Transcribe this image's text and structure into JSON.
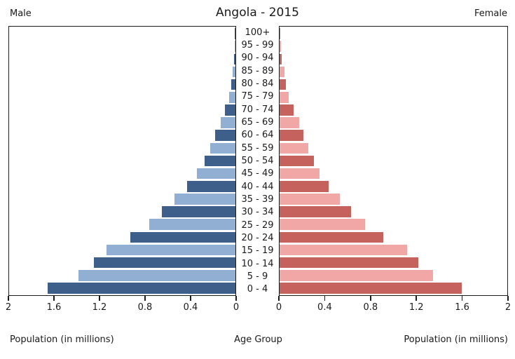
{
  "header": {
    "title": "Angola - 2015",
    "left_label": "Male",
    "right_label": "Female"
  },
  "axis": {
    "male_ticks": [
      "2",
      "1.6",
      "1.2",
      "0.8",
      "0.4",
      "0"
    ],
    "female_ticks": [
      "0",
      "0.4",
      "0.8",
      "1.2",
      "1.6",
      "2"
    ],
    "male_axis_label": "Population (in millions)",
    "female_axis_label": "Population (in millions)",
    "center_axis_label": "Age Group"
  },
  "colors": {
    "male_dark": "#3d5f8a",
    "male_light": "#90afd3",
    "female_dark": "#c5625e",
    "female_light": "#f1a7a5",
    "panel_border": "#1c1c1c"
  },
  "chart_data": {
    "type": "bar",
    "subtype": "population-pyramid",
    "title": "Angola - 2015",
    "unit": "millions",
    "xlabel": "Population (in millions)",
    "center_label": "Age Group",
    "xlim_each_side": [
      0,
      2
    ],
    "grid": false,
    "age_groups_top_to_bottom": [
      "100+",
      "95 - 99",
      "90 - 94",
      "85 - 89",
      "80 - 84",
      "75 - 79",
      "70 - 74",
      "65 - 69",
      "60 - 64",
      "55 - 59",
      "50 - 54",
      "45 - 49",
      "40 - 44",
      "35 - 39",
      "30 - 34",
      "25 - 29",
      "20 - 24",
      "15 - 19",
      "10 - 14",
      "5 - 9",
      "0 - 4"
    ],
    "series": [
      {
        "name": "Male",
        "side": "left",
        "values_top_to_bottom": [
          0.003,
          0.007,
          0.012,
          0.022,
          0.038,
          0.055,
          0.09,
          0.13,
          0.18,
          0.22,
          0.27,
          0.34,
          0.43,
          0.54,
          0.65,
          0.76,
          0.93,
          1.14,
          1.25,
          1.39,
          1.66
        ]
      },
      {
        "name": "Female",
        "side": "right",
        "values_top_to_bottom": [
          0.005,
          0.01,
          0.02,
          0.04,
          0.058,
          0.082,
          0.12,
          0.17,
          0.21,
          0.25,
          0.3,
          0.35,
          0.43,
          0.53,
          0.63,
          0.75,
          0.91,
          1.12,
          1.22,
          1.35,
          1.6
        ]
      }
    ]
  }
}
